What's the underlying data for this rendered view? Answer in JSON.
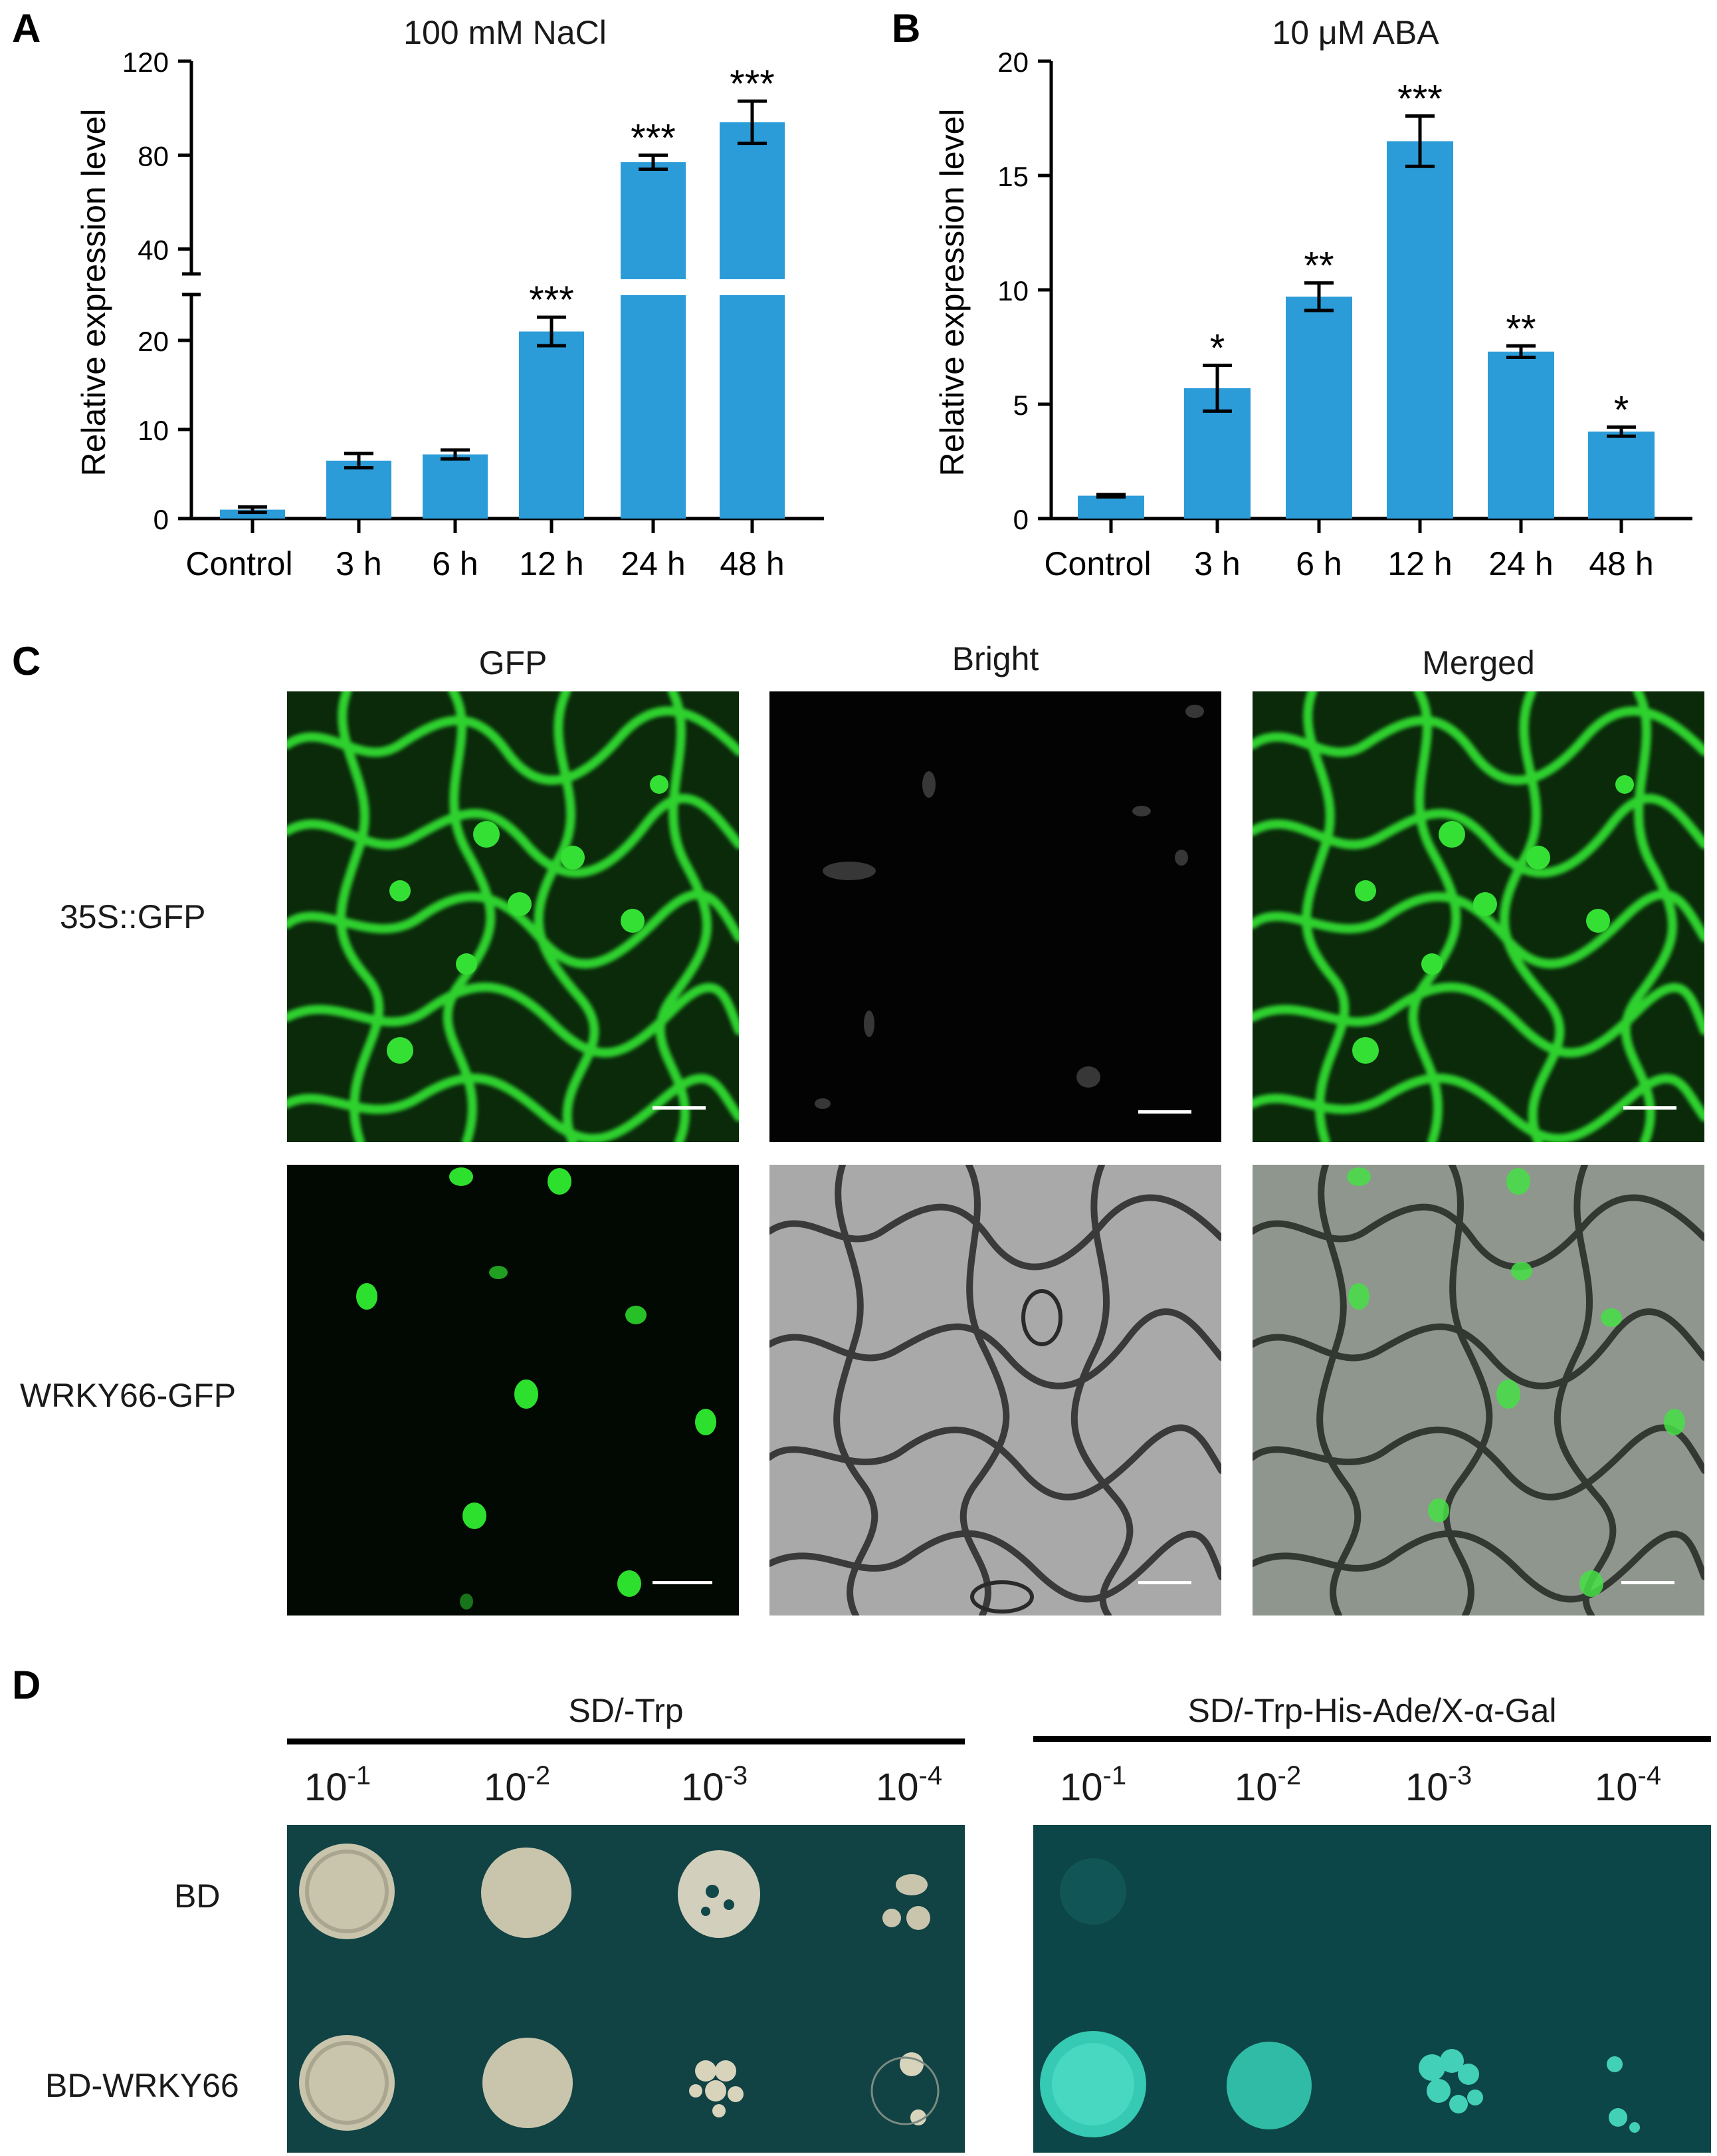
{
  "panels": {
    "a": "A",
    "b": "B",
    "c": "C",
    "d": "D"
  },
  "chart_data": [
    {
      "type": "bar",
      "panel": "A",
      "title": "100 mM NaCl",
      "ylabel": "Relative expression level",
      "xlabel": "",
      "categories": [
        "Control",
        "3 h",
        "6 h",
        "12 h",
        "24 h",
        "48  h"
      ],
      "values": [
        1.0,
        6.5,
        7.2,
        21.0,
        77.0,
        94.0
      ],
      "errors": [
        0.3,
        0.8,
        0.5,
        1.6,
        3.0,
        9.0
      ],
      "significance": [
        "",
        "",
        "",
        "***",
        "***",
        "***"
      ],
      "y_axis_break": {
        "lower": [
          0,
          25
        ],
        "upper": [
          30,
          120
        ]
      },
      "y_ticks": [
        "0",
        "10",
        "20",
        "40",
        "80",
        "120"
      ],
      "color": "#2b9cd8"
    },
    {
      "type": "bar",
      "panel": "B",
      "title": "10 μM ABA",
      "ylabel": "Relative expression level",
      "xlabel": "",
      "categories": [
        "Control",
        "3 h",
        "6 h",
        "12 h",
        "24 h",
        "48  h"
      ],
      "values": [
        1.0,
        5.7,
        9.7,
        16.5,
        7.3,
        3.8
      ],
      "errors": [
        0.05,
        1.0,
        0.6,
        1.1,
        0.25,
        0.2
      ],
      "significance": [
        "",
        "*",
        "**",
        "***",
        "**",
        "*"
      ],
      "ylim": [
        0,
        20
      ],
      "y_ticks": [
        "0",
        "5",
        "10",
        "15",
        "20"
      ],
      "color": "#2b9cd8"
    }
  ],
  "panel_c": {
    "columns": [
      "GFP",
      "Bright",
      "Merged"
    ],
    "rows": [
      "35S::GFP",
      "WRKY66-GFP"
    ]
  },
  "panel_d": {
    "conditions": [
      "SD/-Trp",
      "SD/-Trp-His-Ade/X-α-Gal"
    ],
    "dilutions": [
      {
        "base": "10",
        "exp": "-1"
      },
      {
        "base": "10",
        "exp": "-2"
      },
      {
        "base": "10",
        "exp": "-3"
      },
      {
        "base": "10",
        "exp": "-4"
      }
    ],
    "rows": [
      "BD",
      "BD-WRKY66"
    ]
  }
}
